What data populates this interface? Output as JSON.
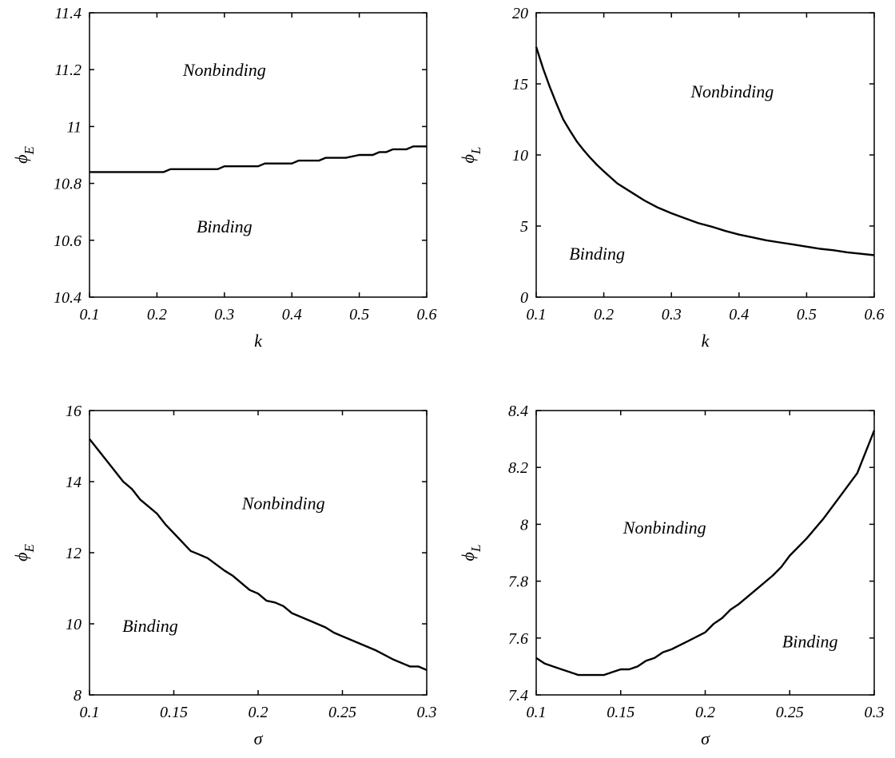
{
  "chart_data": [
    {
      "type": "line",
      "xlabel": "k",
      "ylabel": "ϕ",
      "ylabel_sub": "E",
      "xlim": [
        0.1,
        0.6
      ],
      "ylim": [
        10.4,
        11.4
      ],
      "xticks": [
        0.1,
        0.2,
        0.3,
        0.4,
        0.5,
        0.6
      ],
      "yticks": [
        10.4,
        10.6,
        10.8,
        11,
        11.2,
        11.4
      ],
      "xtick_labels": [
        "0.1",
        "0.2",
        "0.3",
        "0.4",
        "0.5",
        "0.6"
      ],
      "ytick_labels": [
        "10.4",
        "10.6",
        "10.8",
        "11",
        "11.2",
        "11.4"
      ],
      "grid": false,
      "annotations": [
        {
          "text": "Nonbinding",
          "x": 0.3,
          "y": 11.2
        },
        {
          "text": "Binding",
          "x": 0.3,
          "y": 10.65
        }
      ],
      "series": [
        {
          "x": [
            0.1,
            0.21,
            0.22,
            0.29,
            0.3,
            0.35,
            0.36,
            0.4,
            0.41,
            0.44,
            0.45,
            0.47,
            0.48,
            0.5,
            0.51,
            0.52,
            0.53,
            0.54,
            0.55,
            0.57,
            0.58,
            0.6
          ],
          "y": [
            10.84,
            10.84,
            10.85,
            10.85,
            10.86,
            10.86,
            10.87,
            10.87,
            10.88,
            10.88,
            10.89,
            10.89,
            10.89,
            10.9,
            10.9,
            10.9,
            10.91,
            10.91,
            10.92,
            10.92,
            10.93,
            10.93
          ]
        }
      ]
    },
    {
      "type": "line",
      "xlabel": "k",
      "ylabel": "ϕ",
      "ylabel_sub": "L",
      "xlim": [
        0.1,
        0.6
      ],
      "ylim": [
        0,
        20
      ],
      "xticks": [
        0.1,
        0.2,
        0.3,
        0.4,
        0.5,
        0.6
      ],
      "yticks": [
        0,
        5,
        10,
        15,
        20
      ],
      "xtick_labels": [
        "0.1",
        "0.2",
        "0.3",
        "0.4",
        "0.5",
        "0.6"
      ],
      "ytick_labels": [
        "0",
        "5",
        "10",
        "15",
        "20"
      ],
      "grid": false,
      "annotations": [
        {
          "text": "Nonbinding",
          "x": 0.39,
          "y": 14.5
        },
        {
          "text": "Binding",
          "x": 0.19,
          "y": 3.1
        }
      ],
      "series": [
        {
          "x": [
            0.1,
            0.11,
            0.12,
            0.13,
            0.14,
            0.15,
            0.16,
            0.17,
            0.18,
            0.19,
            0.2,
            0.22,
            0.24,
            0.26,
            0.28,
            0.3,
            0.32,
            0.34,
            0.36,
            0.38,
            0.4,
            0.42,
            0.44,
            0.46,
            0.48,
            0.5,
            0.52,
            0.54,
            0.56,
            0.58,
            0.6
          ],
          "y": [
            17.6,
            16.1,
            14.8,
            13.6,
            12.5,
            11.7,
            10.95,
            10.35,
            9.8,
            9.3,
            8.85,
            8.0,
            7.4,
            6.8,
            6.3,
            5.9,
            5.55,
            5.2,
            4.95,
            4.65,
            4.4,
            4.2,
            4.0,
            3.85,
            3.7,
            3.55,
            3.4,
            3.3,
            3.15,
            3.05,
            2.95
          ]
        }
      ]
    },
    {
      "type": "line",
      "xlabel": "σ",
      "ylabel": "ϕ",
      "ylabel_sub": "E",
      "xlim": [
        0.1,
        0.3
      ],
      "ylim": [
        8,
        16
      ],
      "xticks": [
        0.1,
        0.15,
        0.2,
        0.25,
        0.3
      ],
      "yticks": [
        8,
        10,
        12,
        14,
        16
      ],
      "xtick_labels": [
        "0.1",
        "0.15",
        "0.2",
        "0.25",
        "0.3"
      ],
      "ytick_labels": [
        "8",
        "10",
        "12",
        "14",
        "16"
      ],
      "grid": false,
      "annotations": [
        {
          "text": "Nonbinding",
          "x": 0.215,
          "y": 13.4
        },
        {
          "text": "Binding",
          "x": 0.136,
          "y": 9.95
        }
      ],
      "series": [
        {
          "x": [
            0.1,
            0.11,
            0.12,
            0.125,
            0.13,
            0.14,
            0.145,
            0.15,
            0.16,
            0.165,
            0.17,
            0.18,
            0.185,
            0.19,
            0.195,
            0.2,
            0.205,
            0.21,
            0.215,
            0.22,
            0.23,
            0.24,
            0.245,
            0.25,
            0.26,
            0.27,
            0.28,
            0.29,
            0.295,
            0.3
          ],
          "y": [
            15.2,
            14.6,
            14.0,
            13.8,
            13.5,
            13.1,
            12.8,
            12.55,
            12.05,
            11.95,
            11.85,
            11.5,
            11.35,
            11.15,
            10.95,
            10.85,
            10.65,
            10.6,
            10.5,
            10.3,
            10.1,
            9.9,
            9.75,
            9.65,
            9.45,
            9.25,
            9.0,
            8.8,
            8.8,
            8.7
          ]
        }
      ]
    },
    {
      "type": "line",
      "xlabel": "σ",
      "ylabel": "ϕ",
      "ylabel_sub": "L",
      "xlim": [
        0.1,
        0.3
      ],
      "ylim": [
        7.4,
        8.4
      ],
      "xticks": [
        0.1,
        0.15,
        0.2,
        0.25,
        0.3
      ],
      "yticks": [
        7.4,
        7.6,
        7.8,
        8,
        8.2,
        8.4
      ],
      "xtick_labels": [
        "0.1",
        "0.15",
        "0.2",
        "0.25",
        "0.3"
      ],
      "ytick_labels": [
        "7.4",
        "7.6",
        "7.8",
        "8",
        "8.2",
        "8.4"
      ],
      "grid": false,
      "annotations": [
        {
          "text": "Nonbinding",
          "x": 0.176,
          "y": 7.99
        },
        {
          "text": "Binding",
          "x": 0.262,
          "y": 7.59
        }
      ],
      "series": [
        {
          "x": [
            0.1,
            0.105,
            0.11,
            0.115,
            0.12,
            0.125,
            0.13,
            0.135,
            0.14,
            0.145,
            0.15,
            0.155,
            0.16,
            0.165,
            0.17,
            0.175,
            0.18,
            0.19,
            0.2,
            0.205,
            0.21,
            0.215,
            0.22,
            0.23,
            0.24,
            0.245,
            0.25,
            0.26,
            0.27,
            0.28,
            0.29,
            0.3
          ],
          "y": [
            7.53,
            7.51,
            7.5,
            7.49,
            7.48,
            7.47,
            7.47,
            7.47,
            7.47,
            7.48,
            7.49,
            7.49,
            7.5,
            7.52,
            7.53,
            7.55,
            7.56,
            7.59,
            7.62,
            7.65,
            7.67,
            7.7,
            7.72,
            7.77,
            7.82,
            7.85,
            7.89,
            7.95,
            8.02,
            8.1,
            8.18,
            8.33
          ]
        }
      ]
    }
  ]
}
